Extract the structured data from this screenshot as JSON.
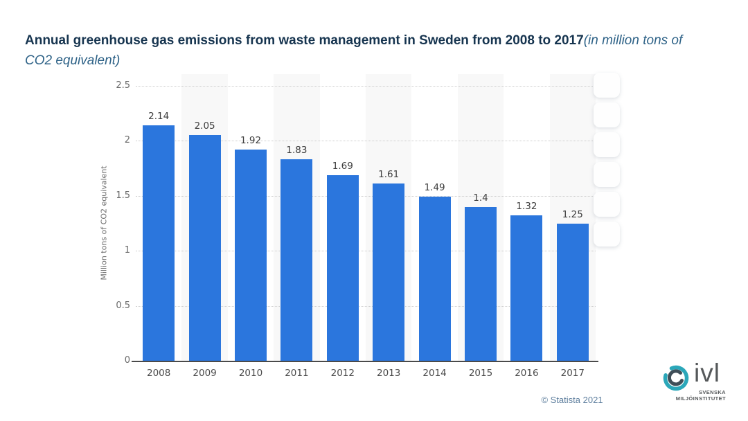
{
  "title": {
    "bold": "Annual greenhouse gas emissions from waste management in Sweden from 2008 to 2017",
    "italic_suffix": "(in million tons of CO2 equivalent)"
  },
  "chart_data": {
    "type": "bar",
    "title": "Annual greenhouse gas emissions from waste management in Sweden from 2008 to 2017 (in million tons of CO2 equivalent)",
    "categories": [
      "2008",
      "2009",
      "2010",
      "2011",
      "2012",
      "2013",
      "2014",
      "2015",
      "2016",
      "2017"
    ],
    "values": [
      2.14,
      2.05,
      1.92,
      1.83,
      1.69,
      1.61,
      1.49,
      1.4,
      1.32,
      1.25
    ],
    "value_labels": [
      "2.14",
      "2.05",
      "1.92",
      "1.83",
      "1.69",
      "1.61",
      "1.49",
      "1.4",
      "1.32",
      "1.25"
    ],
    "ylabel": "Million tons of CO2 equivalent",
    "xlabel": "",
    "ytick_labels": [
      "2.5",
      "2",
      "1.5",
      "1",
      "0.5",
      "0"
    ],
    "yticks": [
      2.5,
      2,
      1.5,
      1,
      0.5,
      0
    ],
    "ylim": [
      0,
      2.5
    ],
    "bar_color": "#2b76dd",
    "grid": "horizontal-dotted",
    "plot_bands": "alternating vertical stripes on odd categories",
    "band_color": "#f8f8f8",
    "legend": "none"
  },
  "toolbar": {
    "button_count": 6
  },
  "footer": {
    "copyright": "© Statista 2021"
  },
  "branding": {
    "logo_text": "ivl",
    "org_line1": "SVENSKA",
    "org_line2": "MILJÖINSTITUTET",
    "teal": "#2ba7b9",
    "gray": "#55585a"
  }
}
